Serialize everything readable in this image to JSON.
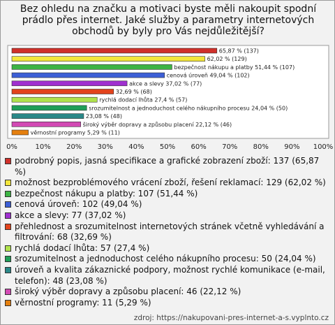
{
  "chart_data": {
    "type": "hbar",
    "title": "Bez ohledu na značku a motivaci byste měli nakoupit spodní prádlo přes internet. Jaké služby a parametry internetových obchodů by byly pro Vás nejdůležitější?",
    "categories": [
      "podrobný popis, jasná specifikace a grafické zobrazení zboží: 137 (65,87 %)",
      "možnost bezproblémového vrácení zboží, řešení reklamací: 129 (62,02 %)",
      "bezpečnost nákupu a platby: 107 (51,44 %)",
      "cenová úroveň: 102 (49,04 %)",
      "akce a slevy: 77 (37,02 %)",
      "přehlednost a srozumitelnost internetových stránek včetně vyhledávání a filtrování: 68 (32,69 %)",
      "rychlá dodací lhůta: 57 (27,4 %)",
      "srozumitelnost a jednoduchost celého nákupního procesu: 50 (24,04 %)",
      "úroveň a kvalita zákaznické podpory, možnost rychlé komunikace (e-mail, telefon): 48 (23,08 %)",
      "široký výběr dopravy a způsobu placení: 46 (22,12 %)",
      "věrnostní programy: 11 (5,29 %)"
    ],
    "values": [
      65.87,
      62.02,
      51.44,
      49.04,
      37.02,
      32.69,
      27.4,
      24.04,
      23.08,
      22.12,
      5.29
    ],
    "value_labels": [
      "65,87 % (137)",
      "62,02 % (129)",
      "bezpečnost nákupu a platby 51,44 % (107)",
      "cenová úroveň 49,04 % (102)",
      "akce a slevy 37,02 % (77)",
      "32,69 % (68)",
      "rychlá dodací lhůta 27,4 % (57)",
      "srozumitelnost a jednoduchost celého nákupního procesu 24,04 % (50)",
      "23,08 % (48)",
      "široký výběr dopravy a způsobu placení 22,12 % (46)",
      "věrnostní programy 5,29 % (11)"
    ],
    "colors": [
      "#d0302a",
      "#f3e63c",
      "#3db444",
      "#3d5fd6",
      "#a030d0",
      "#e2431c",
      "#b0e24c",
      "#1f9e58",
      "#2a8888",
      "#d24ab4",
      "#e5800f"
    ],
    "xlim": [
      0,
      100
    ],
    "xticks": [
      {
        "value": 0,
        "label": "0%"
      },
      {
        "value": 10,
        "label": "10%"
      },
      {
        "value": 20,
        "label": "20%"
      },
      {
        "value": 30,
        "label": "30%"
      },
      {
        "value": 40,
        "label": "40%"
      },
      {
        "value": 50,
        "label": "50%"
      },
      {
        "value": 60,
        "label": "60%"
      },
      {
        "value": 70,
        "label": "70%"
      },
      {
        "value": 80,
        "label": "80%"
      },
      {
        "value": 90,
        "label": "90%"
      },
      {
        "value": 100,
        "label": "100%"
      }
    ],
    "source": "zdroj: https://nakupovani-pres-internet-a-s.vyplnto.cz"
  }
}
